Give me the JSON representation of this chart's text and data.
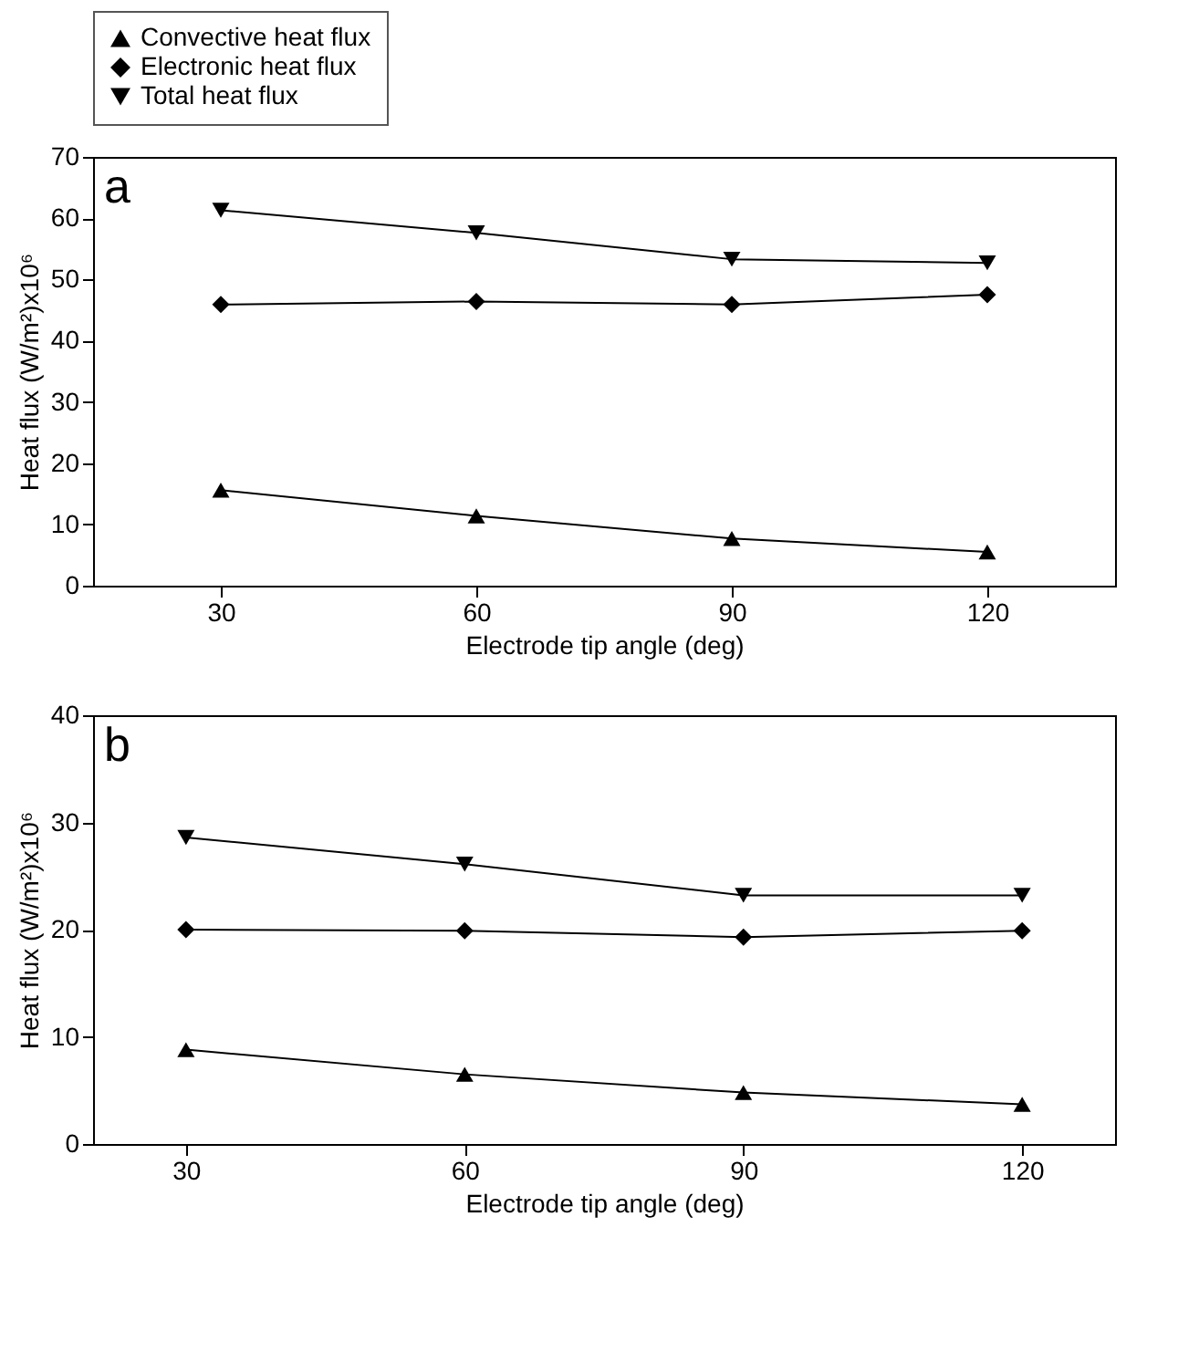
{
  "chart_data": [
    {
      "type": "line",
      "xlabel": "Electrode tip angle (deg)",
      "ylabel": "Heat flux (W/m²)x10⁶",
      "annotations": [
        "a"
      ],
      "x": [
        30,
        60,
        90,
        120
      ],
      "xlim": [
        15,
        135
      ],
      "xticks": [
        30,
        60,
        90,
        120
      ],
      "ylim": [
        0,
        70
      ],
      "yticks": [
        0,
        10,
        20,
        30,
        40,
        50,
        60,
        70
      ],
      "grid": false,
      "legend": "top",
      "series": [
        {
          "name": "Convective heat flux",
          "color": "#000000",
          "marker": "triangle",
          "values": [
            15.6,
            11.4,
            7.7,
            5.5
          ]
        },
        {
          "name": "Electronic heat flux",
          "color": "#000000",
          "marker": "diamond",
          "values": [
            45.9,
            46.4,
            45.9,
            47.5
          ]
        },
        {
          "name": "Total heat flux",
          "color": "#000000",
          "marker": "triangle-down",
          "values": [
            61.3,
            57.6,
            53.3,
            52.7
          ]
        }
      ]
    },
    {
      "type": "line",
      "xlabel": "Electrode tip angle (deg)",
      "ylabel": "Heat flux (W/m²)x10⁶",
      "annotations": [
        "b"
      ],
      "x": [
        30,
        60,
        90,
        120
      ],
      "xlim": [
        20,
        130
      ],
      "xticks": [
        30,
        60,
        90,
        120
      ],
      "ylim": [
        0,
        40
      ],
      "yticks": [
        0,
        10,
        20,
        30,
        40
      ],
      "grid": false,
      "series": [
        {
          "color": "#000000",
          "marker": "triangle",
          "values": [
            8.8,
            6.5,
            4.8,
            3.7
          ]
        },
        {
          "color": "#000000",
          "marker": "diamond",
          "values": [
            20.0,
            19.9,
            19.3,
            19.9
          ]
        },
        {
          "color": "#000000",
          "marker": "triangle-down",
          "values": [
            28.6,
            26.1,
            23.2,
            23.2
          ]
        }
      ]
    }
  ]
}
